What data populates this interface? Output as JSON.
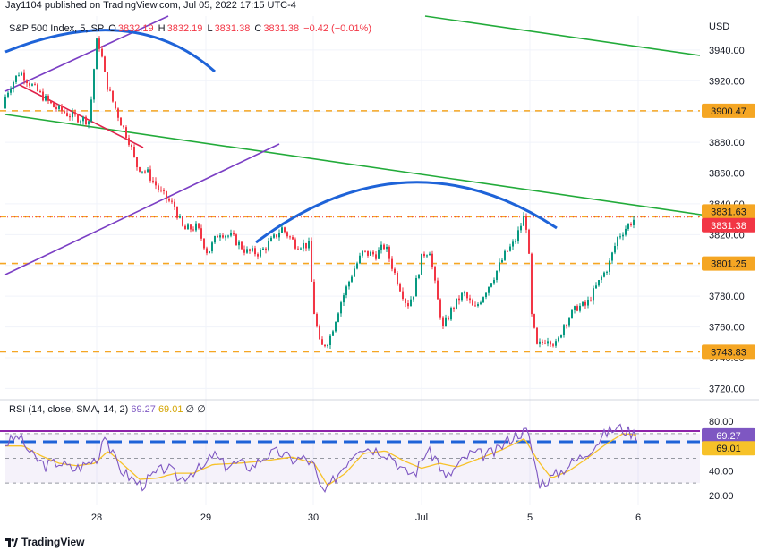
{
  "header": {
    "publisher_line": "Jay1104 published on TradingView.com, Jul 05, 2022 17:15 UTC-4"
  },
  "legend": {
    "symbol": "S&P 500 Index, 5, SP",
    "o_label": "O",
    "o_value": "3832.19",
    "h_label": "H",
    "h_value": "3832.19",
    "l_label": "L",
    "l_value": "3831.38",
    "c_label": "C",
    "c_value": "3831.38",
    "change": "−0.42 (−0.01%)"
  },
  "rsi_legend": {
    "label": "RSI (14, close, SMA, 14, 2)",
    "rsi_value": "69.27",
    "sma_value": "69.01"
  },
  "footer": {
    "brand": "TradingView"
  },
  "colors": {
    "up": "#089981",
    "down": "#f23645",
    "orange_level": "#f5a623",
    "green_trend": "#22ab3a",
    "purple_trend": "#7b3fc4",
    "red_trend": "#e0224a",
    "blue_arc": "#1e63d8",
    "rsi_line": "#7e57c2",
    "rsi_sma": "#f7c229",
    "price_tag": "#f5a623",
    "last_price_tag": "#f23645"
  },
  "chart_data": [
    {
      "type": "candlestick",
      "title": "S&P 500 Index, 5, SP",
      "currency": "USD",
      "x_tick_labels": [
        "28",
        "29",
        "30",
        "Jul",
        "5",
        "6"
      ],
      "y_tick_labels": [
        "3940.00",
        "3920.00",
        "3900.00",
        "3880.00",
        "3860.00",
        "3840.00",
        "3820.00",
        "3800.00",
        "3780.00",
        "3760.00",
        "3740.00",
        "3720.00"
      ],
      "ylim": [
        3715,
        3962
      ],
      "levels": [
        {
          "label": "3900.47",
          "value": 3900.47
        },
        {
          "label": "3831.63",
          "value": 3831.63
        },
        {
          "label": "3801.25",
          "value": 3801.25
        },
        {
          "label": "3743.83",
          "value": 3743.83
        }
      ],
      "last_price": {
        "label": "3831.38",
        "value": 3831.38
      },
      "path_keypoints": [
        [
          0,
          3902
        ],
        [
          10,
          3915
        ],
        [
          22,
          3926
        ],
        [
          40,
          3914
        ],
        [
          60,
          3903
        ],
        [
          80,
          3897
        ],
        [
          100,
          3894
        ],
        [
          104,
          3922
        ],
        [
          108,
          3945
        ],
        [
          112,
          3942
        ],
        [
          118,
          3920
        ],
        [
          125,
          3908
        ],
        [
          135,
          3893
        ],
        [
          145,
          3880
        ],
        [
          152,
          3865
        ],
        [
          165,
          3860
        ],
        [
          180,
          3847
        ],
        [
          195,
          3838
        ],
        [
          205,
          3823
        ],
        [
          220,
          3825
        ],
        [
          232,
          3808
        ],
        [
          245,
          3822
        ],
        [
          260,
          3818
        ],
        [
          275,
          3809
        ],
        [
          290,
          3808
        ],
        [
          305,
          3817
        ],
        [
          315,
          3824
        ],
        [
          330,
          3814
        ],
        [
          345,
          3813
        ],
        [
          350,
          3773
        ],
        [
          358,
          3746
        ],
        [
          368,
          3752
        ],
        [
          380,
          3775
        ],
        [
          395,
          3797
        ],
        [
          405,
          3808
        ],
        [
          420,
          3807
        ],
        [
          430,
          3813
        ],
        [
          442,
          3793
        ],
        [
          455,
          3774
        ],
        [
          462,
          3782
        ],
        [
          472,
          3807
        ],
        [
          480,
          3810
        ],
        [
          488,
          3780
        ],
        [
          495,
          3759
        ],
        [
          505,
          3772
        ],
        [
          518,
          3782
        ],
        [
          530,
          3771
        ],
        [
          542,
          3783
        ],
        [
          552,
          3793
        ],
        [
          565,
          3808
        ],
        [
          575,
          3815
        ],
        [
          585,
          3831
        ],
        [
          590,
          3822
        ],
        [
          593,
          3770
        ],
        [
          600,
          3747
        ],
        [
          612,
          3753
        ],
        [
          622,
          3748
        ],
        [
          630,
          3762
        ],
        [
          645,
          3773
        ],
        [
          655,
          3774
        ],
        [
          668,
          3788
        ],
        [
          680,
          3800
        ],
        [
          690,
          3818
        ],
        [
          700,
          3825
        ],
        [
          710,
          3831
        ]
      ]
    },
    {
      "type": "line",
      "title": "RSI (14, close, SMA, 14, 2)",
      "y_tick_labels": [
        "80.00",
        "60.00",
        "40.00",
        "20.00"
      ],
      "ylim": [
        12,
        88
      ],
      "bands": [
        70,
        50,
        30
      ],
      "series": [
        {
          "name": "RSI",
          "last": 69.27,
          "keypoints": [
            [
              0,
              62
            ],
            [
              15,
              68
            ],
            [
              30,
              52
            ],
            [
              45,
              44
            ],
            [
              60,
              47
            ],
            [
              75,
              41
            ],
            [
              90,
              45
            ],
            [
              105,
              52
            ],
            [
              110,
              74
            ],
            [
              118,
              55
            ],
            [
              130,
              40
            ],
            [
              142,
              33
            ],
            [
              152,
              28
            ],
            [
              165,
              36
            ],
            [
              180,
              43
            ],
            [
              195,
              33
            ],
            [
              210,
              40
            ],
            [
              222,
              42
            ],
            [
              232,
              54
            ],
            [
              245,
              44
            ],
            [
              260,
              46
            ],
            [
              275,
              43
            ],
            [
              290,
              52
            ],
            [
              305,
              55
            ],
            [
              320,
              49
            ],
            [
              335,
              50
            ],
            [
              345,
              44
            ],
            [
              350,
              28
            ],
            [
              358,
              22
            ],
            [
              368,
              34
            ],
            [
              380,
              46
            ],
            [
              395,
              60
            ],
            [
              408,
              58
            ],
            [
              420,
              56
            ],
            [
              432,
              52
            ],
            [
              445,
              39
            ],
            [
              458,
              38
            ],
            [
              470,
              56
            ],
            [
              482,
              50
            ],
            [
              492,
              33
            ],
            [
              505,
              44
            ],
            [
              520,
              54
            ],
            [
              535,
              53
            ],
            [
              548,
              55
            ],
            [
              560,
              64
            ],
            [
              572,
              70
            ],
            [
              583,
              72
            ],
            [
              590,
              52
            ],
            [
              596,
              30
            ],
            [
              605,
              32
            ],
            [
              618,
              38
            ],
            [
              630,
              45
            ],
            [
              645,
              52
            ],
            [
              660,
              62
            ],
            [
              672,
              71
            ],
            [
              685,
              75
            ],
            [
              695,
              72
            ],
            [
              705,
              69
            ]
          ]
        },
        {
          "name": "SMA",
          "last": 69.01,
          "keypoints": [
            [
              0,
              60
            ],
            [
              20,
              60
            ],
            [
              40,
              52
            ],
            [
              60,
              46
            ],
            [
              80,
              44
            ],
            [
              100,
              46
            ],
            [
              115,
              56
            ],
            [
              130,
              46
            ],
            [
              150,
              33
            ],
            [
              170,
              34
            ],
            [
              190,
              38
            ],
            [
              210,
              38
            ],
            [
              232,
              45
            ],
            [
              260,
              46
            ],
            [
              290,
              48
            ],
            [
              320,
              51
            ],
            [
              345,
              46
            ],
            [
              360,
              28
            ],
            [
              380,
              38
            ],
            [
              400,
              54
            ],
            [
              425,
              56
            ],
            [
              445,
              48
            ],
            [
              465,
              42
            ],
            [
              485,
              46
            ],
            [
              505,
              43
            ],
            [
              530,
              50
            ],
            [
              555,
              57
            ],
            [
              580,
              66
            ],
            [
              595,
              48
            ],
            [
              610,
              34
            ],
            [
              630,
              40
            ],
            [
              650,
              50
            ],
            [
              670,
              61
            ],
            [
              690,
              70
            ],
            [
              705,
              69
            ]
          ]
        }
      ]
    }
  ]
}
